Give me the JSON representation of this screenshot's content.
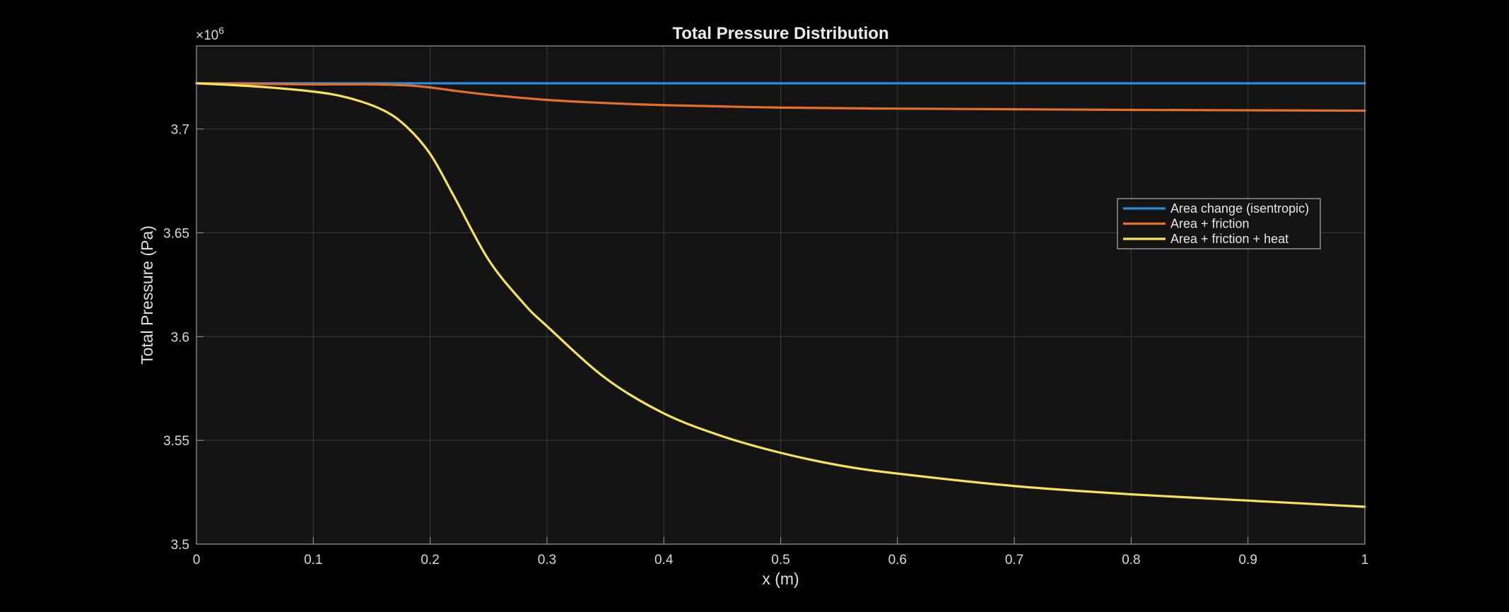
{
  "chart_data": {
    "type": "line",
    "title": "Total Pressure Distribution",
    "xlabel": "x (m)",
    "ylabel": "Total Pressure (Pa)",
    "y_exponent_label": "×10",
    "y_exponent_power": "6",
    "xlim": [
      0,
      1
    ],
    "ylim": [
      3.5,
      3.74
    ],
    "xticks": [
      "0",
      "0.1",
      "0.2",
      "0.3",
      "0.4",
      "0.5",
      "0.6",
      "0.7",
      "0.8",
      "0.9",
      "1"
    ],
    "yticks": [
      "3.5",
      "3.55",
      "3.6",
      "3.65",
      "3.7"
    ],
    "grid": true,
    "legend_position": "right, upper-middle",
    "colors": {
      "background": "#000000",
      "axes": "#141414",
      "grid": "#3a3a3a",
      "series1": "#2b8ae0",
      "series2": "#e5702a",
      "series3": "#f6e35a"
    },
    "series": [
      {
        "name": "Area change (isentropic)",
        "color": "#2b8ae0",
        "x": [
          0,
          0.1,
          0.2,
          0.3,
          0.4,
          0.5,
          0.6,
          0.7,
          0.8,
          0.9,
          1.0
        ],
        "y": [
          3.722,
          3.722,
          3.722,
          3.722,
          3.722,
          3.722,
          3.722,
          3.722,
          3.722,
          3.722,
          3.722
        ]
      },
      {
        "name": "Area + friction",
        "color": "#e5702a",
        "x": [
          0,
          0.1,
          0.15,
          0.18,
          0.2,
          0.22,
          0.25,
          0.3,
          0.35,
          0.4,
          0.5,
          0.6,
          0.7,
          0.8,
          0.9,
          1.0
        ],
        "y": [
          3.722,
          3.7215,
          3.7215,
          3.721,
          3.72,
          3.7185,
          3.7165,
          3.714,
          3.7125,
          3.7115,
          3.7103,
          3.7098,
          3.7095,
          3.7092,
          3.709,
          3.7088
        ]
      },
      {
        "name": "Area + friction + heat",
        "color": "#f6e35a",
        "x": [
          0,
          0.05,
          0.1,
          0.13,
          0.16,
          0.18,
          0.2,
          0.22,
          0.25,
          0.28,
          0.3,
          0.35,
          0.4,
          0.45,
          0.5,
          0.55,
          0.6,
          0.7,
          0.8,
          0.9,
          1.0
        ],
        "y": [
          3.722,
          3.7205,
          3.718,
          3.715,
          3.709,
          3.701,
          3.688,
          3.668,
          3.637,
          3.616,
          3.605,
          3.58,
          3.563,
          3.552,
          3.544,
          3.538,
          3.534,
          3.528,
          3.524,
          3.521,
          3.518
        ]
      }
    ]
  }
}
